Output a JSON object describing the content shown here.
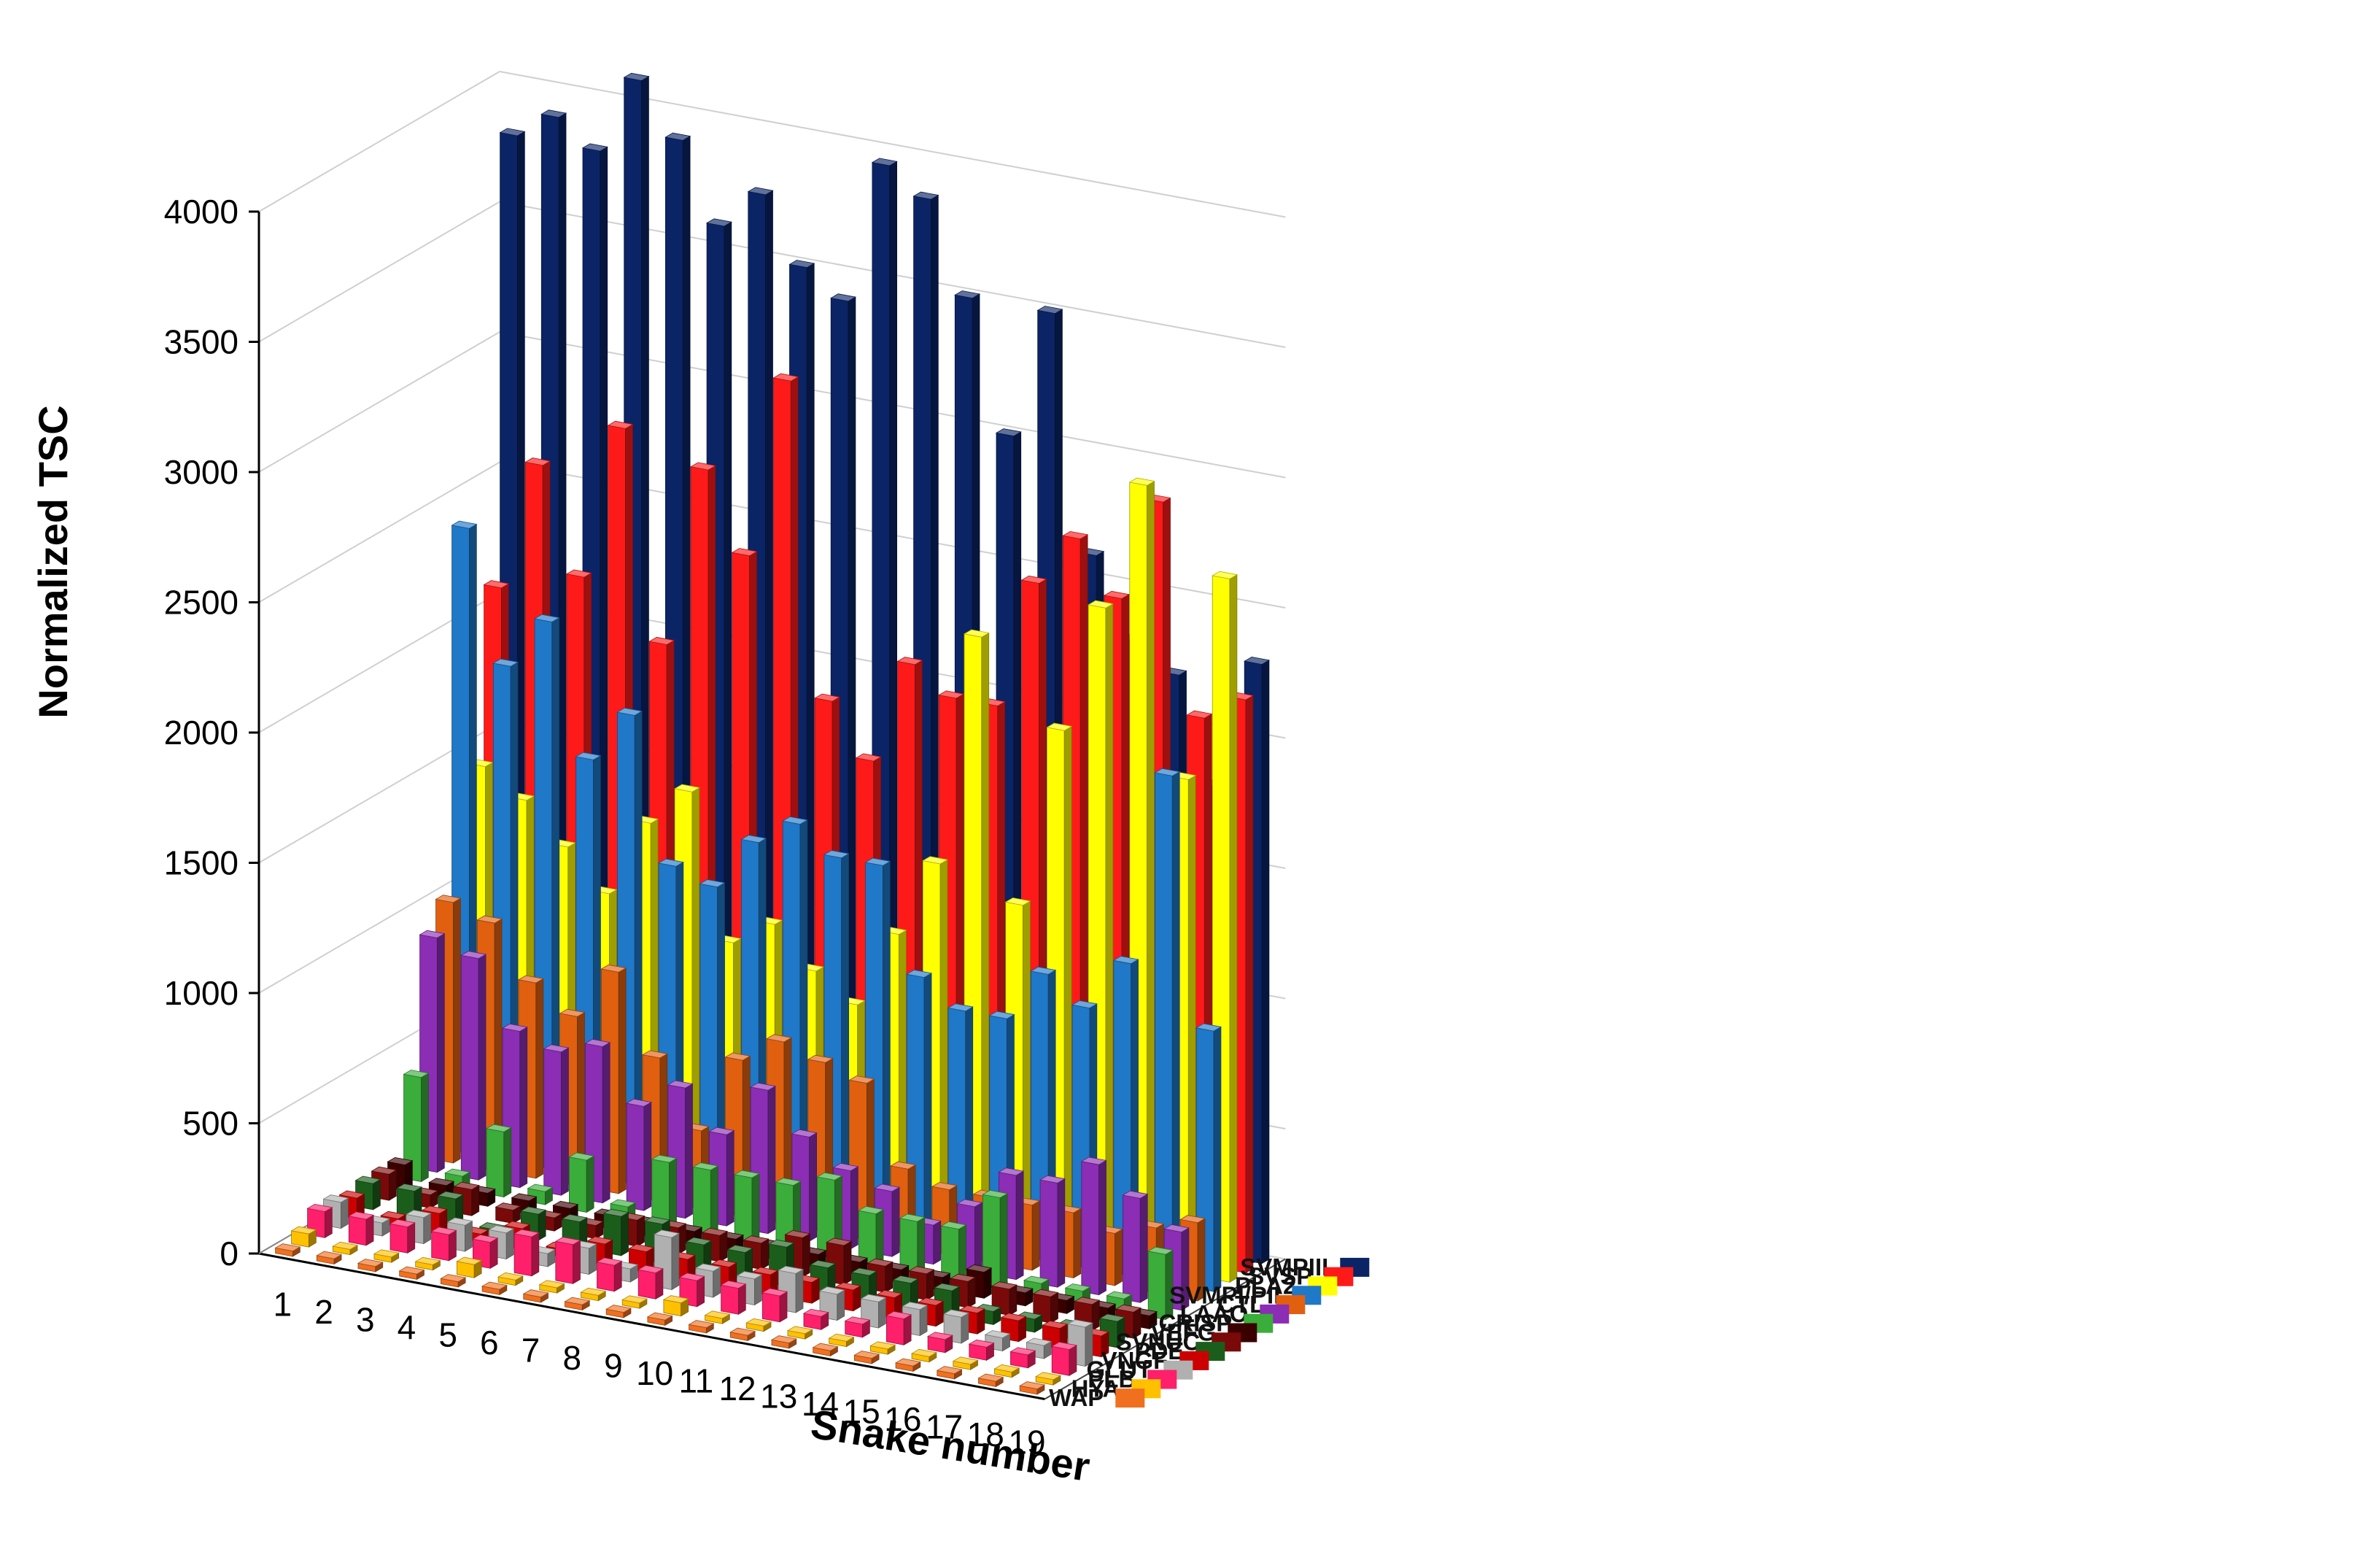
{
  "chart_data": {
    "type": "bar",
    "style": "3d-column",
    "title": "",
    "xlabel": "Snake number",
    "ylabel": "Normalized TSC",
    "ylim": [
      0,
      4000
    ],
    "yticks": [
      "0",
      "500",
      "1000",
      "1500",
      "2000",
      "2500",
      "3000",
      "3500",
      "4000"
    ],
    "categories": [
      "1",
      "2",
      "3",
      "4",
      "5",
      "6",
      "7",
      "8",
      "9",
      "10",
      "11",
      "12",
      "13",
      "14",
      "15",
      "16",
      "17",
      "18",
      "19"
    ],
    "series": [
      {
        "name": "SVMPIII",
        "color": "#0b2466",
        "values": [
          3800,
          3900,
          3800,
          4100,
          3900,
          3600,
          3750,
          3500,
          3400,
          3950,
          3850,
          3500,
          3000,
          3500,
          2600,
          2300,
          2200,
          1800,
          2300
        ]
      },
      {
        "name": "SVSP",
        "color": "#ff1a1a",
        "values": [
          2100,
          2600,
          2200,
          2800,
          2000,
          2700,
          2400,
          3100,
          1900,
          1700,
          2100,
          2000,
          2000,
          2500,
          2700,
          2500,
          2900,
          2100,
          2200
        ]
      },
      {
        "name": "PLA2",
        "color": "#ffff00",
        "values": [
          1450,
          1350,
          1200,
          1050,
          1350,
          1500,
          950,
          1050,
          900,
          800,
          1100,
          1400,
          2300,
          1300,
          2000,
          2500,
          3000,
          1900,
          2700
        ]
      },
      {
        "name": "SVMPI/PII",
        "color": "#1f78c8",
        "values": [
          2400,
          1900,
          2100,
          1600,
          1800,
          1250,
          1200,
          1400,
          1500,
          1400,
          1400,
          1000,
          900,
          900,
          1100,
          1000,
          1200,
          1950,
          1000
        ]
      },
      {
        "name": "CTL",
        "color": "#e06010",
        "values": [
          1000,
          950,
          750,
          650,
          850,
          550,
          300,
          600,
          700,
          650,
          600,
          300,
          250,
          250,
          250,
          250,
          200,
          250,
          300
        ]
      },
      {
        "name": "LAAO",
        "color": "#8b2db5",
        "values": [
          900,
          850,
          600,
          550,
          600,
          400,
          500,
          350,
          550,
          400,
          300,
          250,
          150,
          250,
          400,
          400,
          500,
          400,
          300
        ]
      },
      {
        "name": "CRISP",
        "color": "#3aad3a",
        "values": [
          400,
          50,
          250,
          50,
          200,
          50,
          250,
          250,
          250,
          250,
          300,
          200,
          200,
          200,
          350,
          50,
          50,
          50,
          250
        ]
      },
      {
        "name": "VEFG",
        "color": "#3a0000",
        "values": [
          100,
          50,
          50,
          50,
          50,
          50,
          50,
          50,
          50,
          50,
          50,
          50,
          50,
          50,
          100,
          50,
          50,
          50,
          50
        ]
      },
      {
        "name": "SVNUC",
        "color": "#7a0a0a",
        "values": [
          100,
          50,
          100,
          50,
          50,
          50,
          100,
          100,
          100,
          100,
          150,
          150,
          100,
          100,
          100,
          100,
          100,
          100,
          100
        ]
      },
      {
        "name": "PDE",
        "color": "#1b5e1b",
        "values": [
          100,
          100,
          100,
          10,
          100,
          100,
          150,
          150,
          100,
          100,
          150,
          100,
          100,
          100,
          100,
          50,
          50,
          50,
          100
        ]
      },
      {
        "name": "VNGF",
        "color": "#cc0000",
        "values": [
          80,
          30,
          80,
          30,
          80,
          30,
          80,
          80,
          80,
          80,
          80,
          80,
          80,
          80,
          80,
          80,
          80,
          80,
          80
        ]
      },
      {
        "name": "GLUT",
        "color": "#b0b0b0",
        "values": [
          100,
          50,
          100,
          100,
          100,
          50,
          100,
          50,
          200,
          100,
          100,
          150,
          100,
          100,
          100,
          100,
          50,
          50,
          150
        ]
      },
      {
        "name": "PLB",
        "color": "#ff1f6a",
        "values": [
          100,
          100,
          100,
          100,
          100,
          150,
          150,
          100,
          100,
          100,
          100,
          100,
          50,
          50,
          100,
          50,
          50,
          50,
          100
        ]
      },
      {
        "name": "HYA",
        "color": "#ffc000",
        "values": [
          50,
          20,
          20,
          20,
          50,
          20,
          20,
          20,
          20,
          50,
          20,
          20,
          20,
          20,
          20,
          20,
          20,
          20,
          20
        ]
      },
      {
        "name": "WAP",
        "color": "#f07020",
        "values": [
          20,
          20,
          20,
          20,
          20,
          20,
          20,
          20,
          20,
          20,
          20,
          20,
          20,
          20,
          20,
          20,
          20,
          20,
          20
        ]
      }
    ],
    "legend_position": "right",
    "grid": true
  }
}
